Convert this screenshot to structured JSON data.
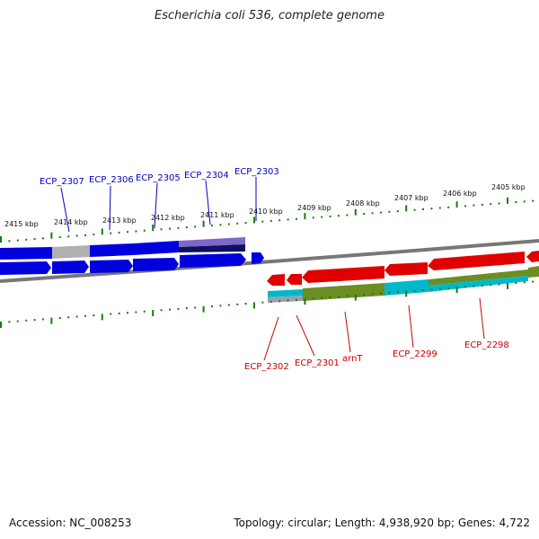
{
  "title": "Escherichia coli 536, complete genome",
  "footer": {
    "accession": "Accession: NC_008253",
    "summary": "Topology: circular; Length: 4,938,920 bp; Genes: 4,722"
  },
  "colors": {
    "backbone": "#777777",
    "ticks": "#1a7a10",
    "forward_gene": "#e00000",
    "reverse_gene": "#0000dd",
    "forward_label": "#cc0000",
    "reverse_label": "#0000bb",
    "olive_feature": "#6b8e23",
    "cyan_feature": "#00b8cc",
    "gray_feature": "#b0b0b0",
    "purple_feature": "#7b68c8",
    "navy_feature": "#101060"
  },
  "outer_scale_labels": [
    "2415 kbp",
    "2414 kbp",
    "2413 kbp",
    "2412 kbp",
    "2411 kbp",
    "2410 kbp",
    "2409 kbp",
    "2408 kbp",
    "2407 kbp",
    "2406 kbp",
    "2405 kbp"
  ],
  "reverse_gene_labels": [
    "ECP_2307",
    "ECP_2306",
    "ECP_2305",
    "ECP_2304",
    "ECP_2303"
  ],
  "forward_gene_labels": [
    "ECP_2302",
    "ECP_2301",
    "arnT",
    "ECP_2299",
    "ECP_2298"
  ]
}
